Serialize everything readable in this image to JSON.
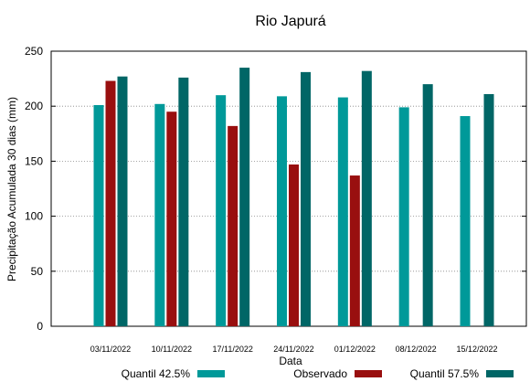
{
  "chart_data": {
    "type": "bar",
    "title": "Rio Japurá",
    "xlabel": "Data",
    "ylabel": "Precipitação Acumulada 30 dias (mm)",
    "ylim": [
      0,
      250
    ],
    "yticks": [
      0,
      50,
      100,
      150,
      200,
      250
    ],
    "grid": true,
    "legend_position": "bottom",
    "categories": [
      "03/11/2022",
      "10/11/2022",
      "17/11/2022",
      "24/11/2022",
      "01/12/2022",
      "08/12/2022",
      "15/12/2022"
    ],
    "series": [
      {
        "name": "Quantil 42.5%",
        "color": "#009999",
        "values": [
          201,
          202,
          210,
          209,
          208,
          199,
          191
        ]
      },
      {
        "name": "Observado",
        "color": "#990f0f",
        "values": [
          223,
          195,
          182,
          147,
          137,
          null,
          null
        ]
      },
      {
        "name": "Quantil 57.5%",
        "color": "#006666",
        "values": [
          227,
          226,
          235,
          231,
          232,
          220,
          211
        ]
      }
    ]
  }
}
